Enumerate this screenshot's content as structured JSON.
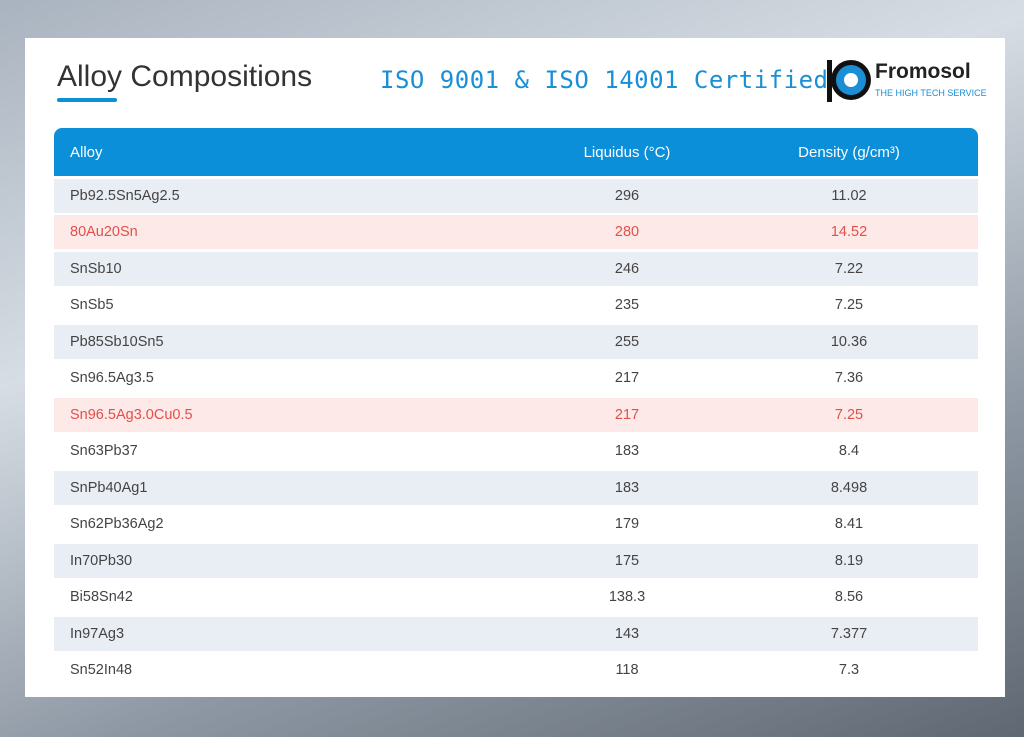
{
  "header": {
    "title": "Alloy Compositions",
    "certification": "ISO 9001 & ISO 14001 Certified",
    "logo_name": "Fromosol",
    "logo_tagline": "THE HIGH TECH SERVICE"
  },
  "table": {
    "columns": [
      "Alloy",
      "Liquidus (°C)",
      "Density (g/cm³)"
    ],
    "rows": [
      {
        "alloy": "Pb92.5Sn5Ag2.5",
        "liquidus": 296,
        "density": 11.02,
        "highlight": false
      },
      {
        "alloy": "80Au20Sn",
        "liquidus": 280,
        "density": 14.52,
        "highlight": true
      },
      {
        "alloy": "SnSb10",
        "liquidus": 246,
        "density": 7.22,
        "highlight": false
      },
      {
        "alloy": "SnSb5",
        "liquidus": 235,
        "density": 7.25,
        "highlight": false
      },
      {
        "alloy": "Pb85Sb10Sn5",
        "liquidus": 255,
        "density": 10.36,
        "highlight": false
      },
      {
        "alloy": "Sn96.5Ag3.5",
        "liquidus": 217,
        "density": 7.36,
        "highlight": false
      },
      {
        "alloy": "Sn96.5Ag3.0Cu0.5",
        "liquidus": 217,
        "density": 7.25,
        "highlight": true
      },
      {
        "alloy": "Sn63Pb37",
        "liquidus": 183,
        "density": 8.4,
        "highlight": false
      },
      {
        "alloy": "SnPb40Ag1",
        "liquidus": 183,
        "density": 8.498,
        "highlight": false
      },
      {
        "alloy": "Sn62Pb36Ag2",
        "liquidus": 179,
        "density": 8.41,
        "highlight": false
      },
      {
        "alloy": "In70Pb30",
        "liquidus": 175,
        "density": 8.19,
        "highlight": false
      },
      {
        "alloy": "Bi58Sn42",
        "liquidus": 138.3,
        "density": 8.56,
        "highlight": false
      },
      {
        "alloy": "In97Ag3",
        "liquidus": 143,
        "density": 7.377,
        "highlight": false
      },
      {
        "alloy": "Sn52In48",
        "liquidus": 118,
        "density": 7.3,
        "highlight": false
      }
    ]
  }
}
